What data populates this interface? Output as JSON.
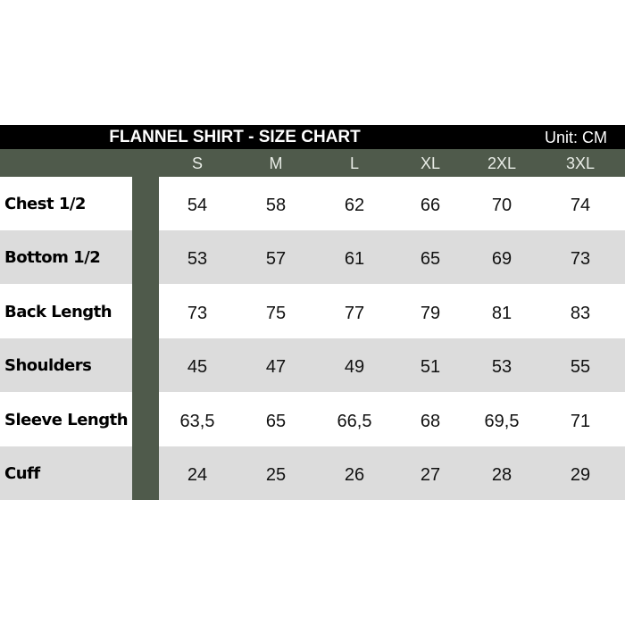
{
  "title": "FLANNEL SHIRT - SIZE CHART",
  "unit": "Unit: CM",
  "sizes": [
    "S",
    "M",
    "L",
    "XL",
    "2XL",
    "3XL"
  ],
  "rows": [
    {
      "label": "Chest 1/2",
      "values": [
        "54",
        "58",
        "62",
        "66",
        "70",
        "74"
      ]
    },
    {
      "label": "Bottom 1/2",
      "values": [
        "53",
        "57",
        "61",
        "65",
        "69",
        "73"
      ]
    },
    {
      "label": "Back Length",
      "values": [
        "73",
        "75",
        "77",
        "79",
        "81",
        "83"
      ]
    },
    {
      "label": "Shoulders",
      "values": [
        "45",
        "47",
        "49",
        "51",
        "53",
        "55"
      ]
    },
    {
      "label": "Sleeve Length",
      "values": [
        "63,5",
        "65",
        "66,5",
        "68",
        "69,5",
        "71"
      ]
    },
    {
      "label": "Cuff",
      "values": [
        "24",
        "25",
        "26",
        "27",
        "28",
        "29"
      ]
    }
  ],
  "colors": {
    "header_green": "#4f5a4b",
    "alt_row": "#dcdcdc",
    "title_bar": "#000000"
  }
}
